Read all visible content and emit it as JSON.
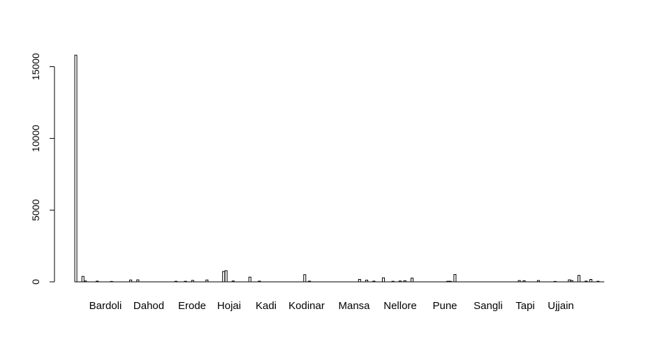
{
  "chart_data": {
    "type": "bar",
    "title": "",
    "xlabel": "",
    "ylabel": "",
    "ylim": [
      0,
      16000
    ],
    "yticks": [
      0,
      5000,
      10000,
      15000
    ],
    "grid": false,
    "category_labels": [
      "Bardoli",
      "Dahod",
      "Erode",
      "Hojai",
      "Kadi",
      "Kodinar",
      "Mansa",
      "Nellore",
      "Pune",
      "Sangli",
      "Tapi",
      "Ujjain"
    ],
    "values": [
      15800,
      0,
      0,
      380,
      60,
      0,
      0,
      0,
      0,
      50,
      0,
      0,
      0,
      0,
      0,
      30,
      0,
      0,
      0,
      0,
      0,
      0,
      0,
      130,
      0,
      0,
      140,
      0,
      0,
      0,
      0,
      0,
      0,
      0,
      0,
      0,
      0,
      0,
      0,
      0,
      0,
      0,
      40,
      0,
      0,
      0,
      40,
      0,
      0,
      100,
      0,
      0,
      0,
      0,
      0,
      130,
      0,
      0,
      0,
      0,
      0,
      0,
      720,
      780,
      0,
      0,
      60,
      0,
      0,
      0,
      0,
      0,
      0,
      330,
      0,
      0,
      0,
      50,
      0,
      0,
      0,
      0,
      0,
      0,
      0,
      0,
      0,
      0,
      0,
      0,
      0,
      0,
      0,
      0,
      0,
      0,
      500,
      0,
      50,
      0,
      0,
      0,
      0,
      0,
      0,
      0,
      0,
      0,
      0,
      0,
      0,
      0,
      0,
      0,
      0,
      0,
      0,
      0,
      0,
      170,
      0,
      0,
      120,
      0,
      0,
      50,
      0,
      0,
      0,
      280,
      0,
      0,
      0,
      40,
      0,
      0,
      60,
      0,
      80,
      0,
      0,
      260,
      0,
      0,
      0,
      0,
      0,
      0,
      0,
      0,
      0,
      0,
      0,
      0,
      0,
      0,
      40,
      40,
      0,
      510,
      0,
      0,
      0,
      0,
      0,
      0,
      0,
      0,
      0,
      0,
      0,
      0,
      0,
      0,
      0,
      0,
      0,
      0,
      0,
      0,
      0,
      0,
      0,
      0,
      0,
      0,
      90,
      0,
      80,
      0,
      0,
      0,
      0,
      0,
      90,
      0,
      0,
      0,
      0,
      0,
      0,
      30,
      0,
      0,
      0,
      0,
      0,
      140,
      90,
      0,
      0,
      450,
      0,
      0,
      50,
      0,
      170,
      0,
      0,
      40,
      0,
      0
    ]
  }
}
